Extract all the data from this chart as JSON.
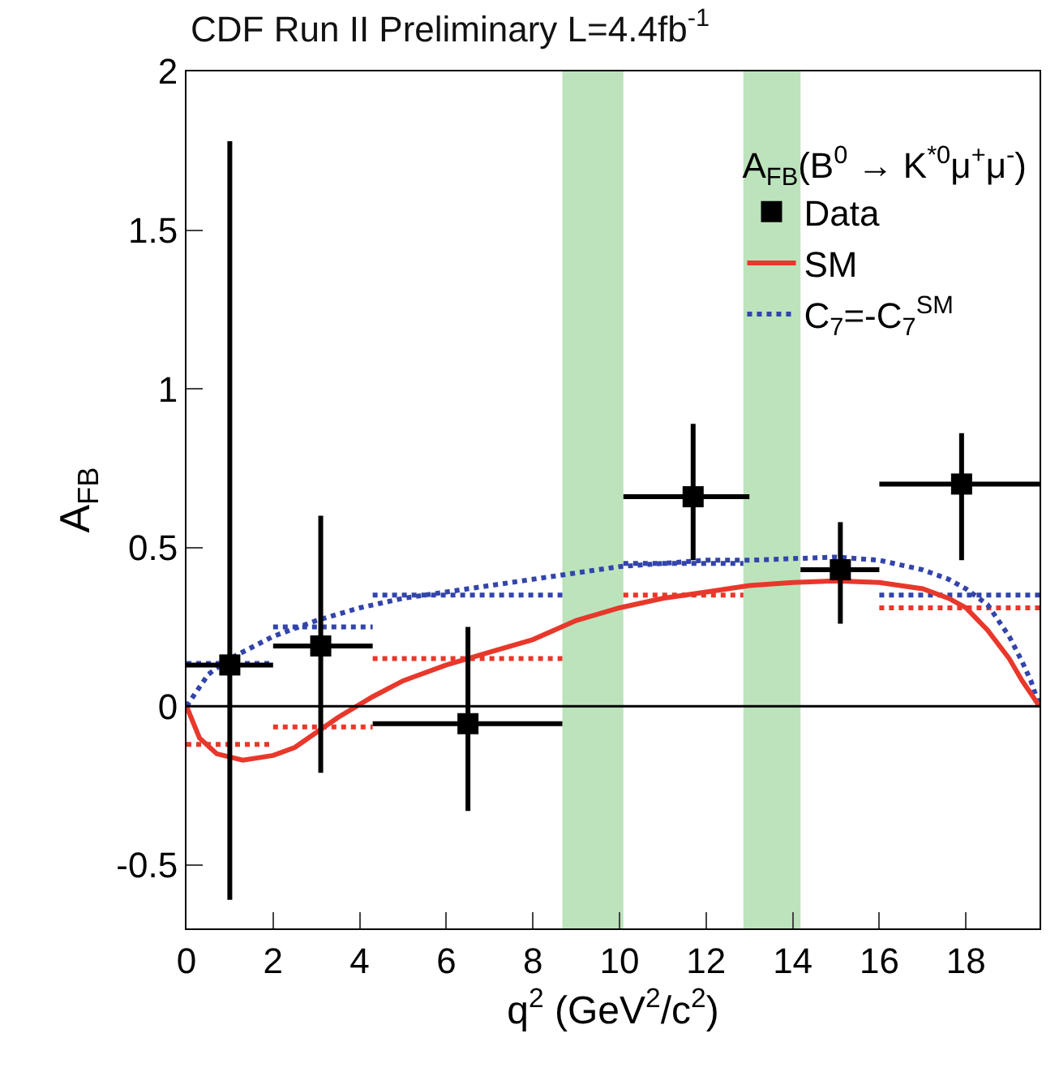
{
  "chart_data": {
    "type": "scatter",
    "title": "CDF Run II Preliminary L=4.4fb$^{-1}$",
    "xlabel": "q$^{2}$ (GeV$^{2}$/c$^{2}$)",
    "ylabel": "A$_{FB}$",
    "legend_title": "A$_{FB}$(B$^{0}$ → K$^{*0}$μ$^{+}$μ$^{-}$)",
    "xlim": [
      0,
      19.7
    ],
    "ylim": [
      -0.7,
      2
    ],
    "xticks": [
      0,
      2,
      4,
      6,
      8,
      10,
      12,
      14,
      16,
      18
    ],
    "yticks": [
      -0.5,
      0,
      0.5,
      1,
      1.5,
      2
    ],
    "grid": false,
    "legend": "top right",
    "ref_lines": [
      {
        "axis": "y",
        "value": 0,
        "color": "#000000"
      }
    ],
    "bands": [
      {
        "axis": "x",
        "from": 8.68,
        "to": 10.09,
        "color": "#8fd18f"
      },
      {
        "axis": "x",
        "from": 12.86,
        "to": 14.18,
        "color": "#8fd18f"
      }
    ],
    "series": [
      {
        "type": "line",
        "line_style": "dotted",
        "color": "#e8382b",
        "x": [
          0,
          2
        ],
        "values": [
          -0.12,
          -0.12
        ]
      },
      {
        "type": "line",
        "line_style": "dotted",
        "color": "#e8382b",
        "x": [
          2,
          4.3
        ],
        "values": [
          -0.065,
          -0.065
        ]
      },
      {
        "type": "line",
        "line_style": "dotted",
        "color": "#e8382b",
        "x": [
          4.3,
          8.68
        ],
        "values": [
          0.15,
          0.15
        ]
      },
      {
        "type": "line",
        "line_style": "dotted",
        "color": "#e8382b",
        "x": [
          10.09,
          12.86
        ],
        "values": [
          0.35,
          0.35
        ]
      },
      {
        "type": "line",
        "line_style": "dotted",
        "color": "#e8382b",
        "x": [
          16,
          19.7
        ],
        "values": [
          0.31,
          0.31
        ]
      },
      {
        "type": "line",
        "line_style": "dotted",
        "color": "#3344aa",
        "x": [
          0,
          2
        ],
        "values": [
          0.135,
          0.135
        ]
      },
      {
        "type": "line",
        "line_style": "dotted",
        "color": "#3344aa",
        "x": [
          2,
          4.3
        ],
        "values": [
          0.25,
          0.25
        ]
      },
      {
        "type": "line",
        "line_style": "dotted",
        "color": "#3344aa",
        "x": [
          4.3,
          8.68
        ],
        "values": [
          0.35,
          0.35
        ]
      },
      {
        "type": "line",
        "line_style": "dotted",
        "color": "#3344aa",
        "x": [
          10.09,
          12.86
        ],
        "values": [
          0.45,
          0.45
        ]
      },
      {
        "type": "line",
        "line_style": "dotted",
        "color": "#3344aa",
        "x": [
          16,
          19.7
        ],
        "values": [
          0.35,
          0.35
        ]
      },
      {
        "name": "C$_{7}$=-C$_{7}$$^{SM}$",
        "type": "line",
        "line_style": "dotted",
        "color": "#3344aa",
        "x": [
          0,
          0.5,
          1,
          2,
          3,
          4,
          5,
          6,
          7,
          8,
          9,
          10,
          11,
          12,
          13,
          14,
          15,
          16,
          17,
          17.6,
          18,
          18.5,
          19,
          19.3,
          19.5,
          19.7
        ],
        "values": [
          0,
          0.1,
          0.15,
          0.22,
          0.27,
          0.31,
          0.34,
          0.36,
          0.38,
          0.4,
          0.42,
          0.44,
          0.45,
          0.46,
          0.46,
          0.465,
          0.47,
          0.46,
          0.43,
          0.4,
          0.37,
          0.32,
          0.22,
          0.14,
          0.08,
          0
        ]
      },
      {
        "name": "SM",
        "type": "line",
        "line_style": "solid",
        "color": "#e8382b",
        "x": [
          0,
          0.3,
          0.7,
          1.3,
          2,
          2.5,
          3.5,
          4.3,
          5,
          6,
          7,
          8,
          9,
          10,
          11,
          12,
          13,
          14,
          15,
          16,
          17,
          17.6,
          18,
          18.5,
          19,
          19.3,
          19.5,
          19.7
        ],
        "values": [
          0,
          -0.1,
          -0.15,
          -0.17,
          -0.155,
          -0.13,
          -0.035,
          0.03,
          0.08,
          0.13,
          0.17,
          0.21,
          0.27,
          0.31,
          0.34,
          0.36,
          0.38,
          0.39,
          0.395,
          0.39,
          0.37,
          0.34,
          0.31,
          0.24,
          0.15,
          0.08,
          0.04,
          0
        ]
      },
      {
        "name": "Data",
        "type": "scatter",
        "marker": "square",
        "color": "#000000",
        "x": [
          1.0,
          3.1,
          6.5,
          11.7,
          15.1,
          17.9
        ],
        "values": [
          0.13,
          0.19,
          -0.055,
          0.66,
          0.43,
          0.7
        ],
        "errors": [
          [
            -0.61,
            1.78
          ],
          [
            -0.21,
            0.6
          ],
          [
            -0.33,
            0.25
          ],
          [
            0.46,
            0.89
          ],
          [
            0.26,
            0.58
          ],
          [
            0.46,
            0.86
          ]
        ],
        "xerrors": [
          [
            0,
            2
          ],
          [
            2,
            4.3
          ],
          [
            4.3,
            8.68
          ],
          [
            10.09,
            13.0
          ],
          [
            14.18,
            16
          ],
          [
            16,
            19.7
          ]
        ]
      }
    ]
  }
}
